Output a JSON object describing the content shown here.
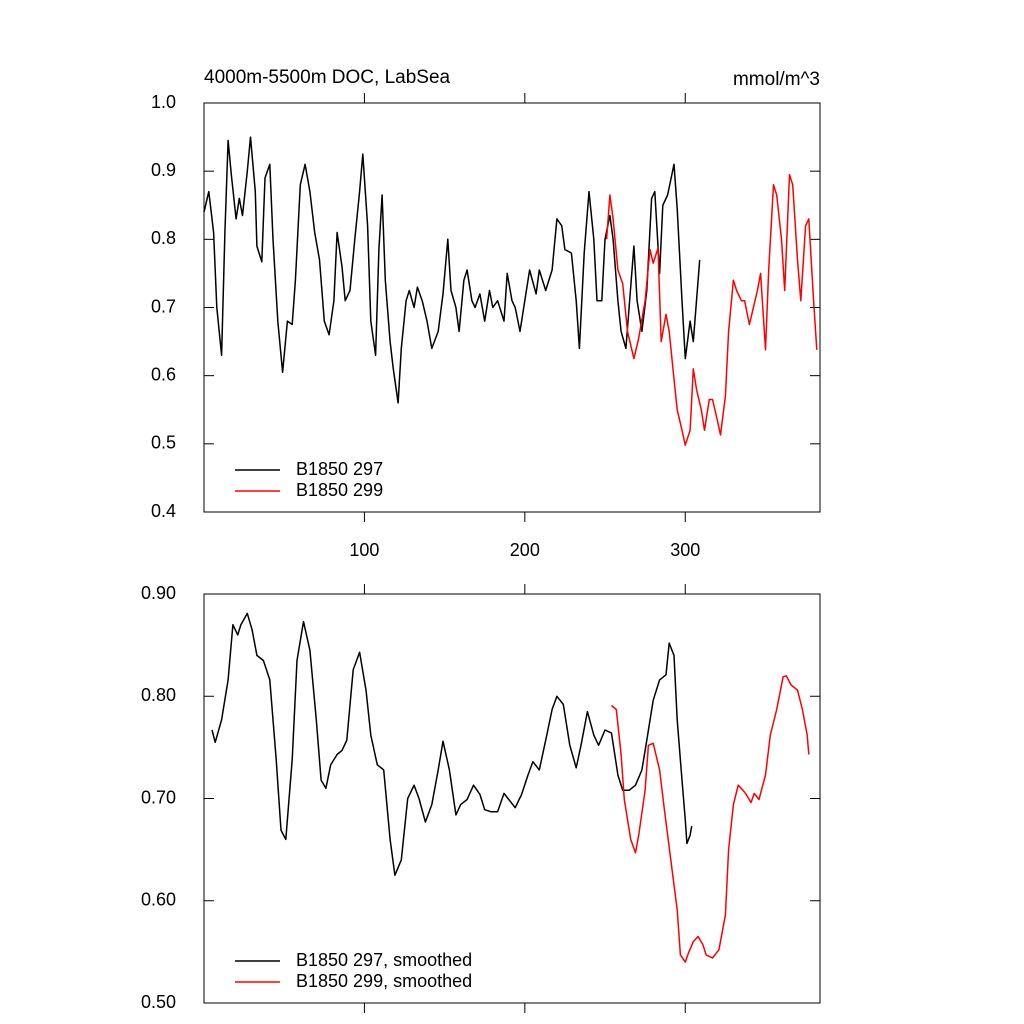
{
  "chart_data": [
    {
      "type": "line",
      "title": "4000m-5500m DOC, LabSea",
      "right_title": "mmol/m^3",
      "xlim": [
        0,
        384
      ],
      "xticks": [
        100,
        200,
        300
      ],
      "show_xtick_labels": true,
      "ylim": [
        0.4,
        1.0
      ],
      "yticks": [
        0.4,
        0.5,
        0.6,
        0.7,
        0.8,
        0.9,
        {
          "value": 1,
          "label": "1.0"
        }
      ],
      "legend": "lower left",
      "series": [
        {
          "name": "B1850 297",
          "color": "#000000",
          "x": [
            0,
            3,
            6,
            8,
            11,
            13,
            15,
            17,
            20,
            22,
            24,
            27,
            29,
            32,
            33,
            36,
            38,
            41,
            43,
            46,
            49,
            52,
            55,
            57,
            60,
            63,
            66,
            69,
            72,
            75,
            78,
            81,
            83,
            86,
            88,
            91,
            94,
            97,
            99,
            102,
            104,
            107,
            109,
            111,
            113,
            116,
            118,
            121,
            123,
            126,
            128,
            131,
            133,
            136,
            139,
            142,
            146,
            149,
            152,
            154,
            157,
            159,
            162,
            164,
            167,
            169,
            172,
            175,
            178,
            180,
            183,
            187,
            189,
            192,
            194,
            197,
            200,
            203,
            207,
            209,
            213,
            217,
            220,
            223,
            225,
            229,
            232,
            234,
            237,
            240,
            243,
            245,
            248,
            250,
            253,
            255,
            258,
            260,
            263,
            265,
            268,
            270,
            273,
            276,
            279,
            281,
            284,
            286,
            289,
            293,
            295,
            298,
            300,
            303,
            305,
            307,
            309
          ],
          "values": [
            0.84,
            0.87,
            0.81,
            0.7,
            0.63,
            0.81,
            0.945,
            0.895,
            0.83,
            0.86,
            0.835,
            0.9,
            0.95,
            0.87,
            0.79,
            0.767,
            0.89,
            0.91,
            0.8,
            0.68,
            0.605,
            0.68,
            0.675,
            0.74,
            0.88,
            0.91,
            0.87,
            0.81,
            0.77,
            0.68,
            0.66,
            0.71,
            0.81,
            0.76,
            0.71,
            0.725,
            0.8,
            0.87,
            0.925,
            0.82,
            0.68,
            0.63,
            0.785,
            0.865,
            0.74,
            0.65,
            0.61,
            0.56,
            0.64,
            0.71,
            0.725,
            0.7,
            0.73,
            0.71,
            0.68,
            0.64,
            0.665,
            0.72,
            0.8,
            0.725,
            0.7,
            0.665,
            0.74,
            0.755,
            0.71,
            0.7,
            0.72,
            0.68,
            0.725,
            0.7,
            0.71,
            0.68,
            0.75,
            0.71,
            0.7,
            0.665,
            0.71,
            0.755,
            0.72,
            0.755,
            0.725,
            0.755,
            0.83,
            0.82,
            0.785,
            0.78,
            0.71,
            0.64,
            0.78,
            0.87,
            0.8,
            0.71,
            0.71,
            0.8,
            0.835,
            0.8,
            0.71,
            0.665,
            0.64,
            0.7,
            0.79,
            0.71,
            0.665,
            0.725,
            0.86,
            0.87,
            0.75,
            0.85,
            0.865,
            0.91,
            0.845,
            0.71,
            0.625,
            0.68,
            0.65,
            0.71,
            0.77
          ]
        },
        {
          "name": "B1850 299",
          "color": "#ff0000",
          "x": [
            251,
            253,
            255,
            258,
            261,
            264,
            268,
            271,
            275,
            278,
            280,
            283,
            285,
            288,
            290,
            293,
            295,
            298,
            300,
            303,
            305,
            307,
            310,
            312,
            315,
            317,
            320,
            322,
            325,
            327,
            330,
            332,
            335,
            337,
            340,
            342,
            345,
            347,
            350,
            352,
            355,
            357,
            360,
            362,
            365,
            367,
            370,
            372,
            375,
            377,
            380,
            382
          ],
          "values": [
            0.8,
            0.865,
            0.83,
            0.755,
            0.735,
            0.665,
            0.625,
            0.655,
            0.71,
            0.785,
            0.765,
            0.787,
            0.65,
            0.69,
            0.665,
            0.595,
            0.55,
            0.52,
            0.498,
            0.52,
            0.61,
            0.58,
            0.55,
            0.52,
            0.565,
            0.565,
            0.535,
            0.513,
            0.57,
            0.665,
            0.74,
            0.725,
            0.71,
            0.71,
            0.675,
            0.695,
            0.725,
            0.75,
            0.638,
            0.755,
            0.88,
            0.865,
            0.8,
            0.725,
            0.895,
            0.88,
            0.77,
            0.71,
            0.82,
            0.83,
            0.71,
            0.638
          ]
        }
      ]
    },
    {
      "type": "line",
      "xlim": [
        0,
        384
      ],
      "xticks": [
        100,
        200,
        300
      ],
      "show_xtick_labels": false,
      "ylim": [
        0.5,
        0.9
      ],
      "yticks": [
        {
          "value": 0.5,
          "label": "0.50"
        },
        {
          "value": 0.6,
          "label": "0.60"
        },
        {
          "value": 0.7,
          "label": "0.70"
        },
        {
          "value": 0.8,
          "label": "0.80"
        },
        {
          "value": 0.9,
          "label": "0.90"
        }
      ],
      "legend": "lower left",
      "series": [
        {
          "name": "B1850 297, smoothed",
          "color": "#000000",
          "x": [
            5,
            7,
            11,
            15,
            18,
            21,
            23,
            27,
            30,
            33,
            37,
            41,
            45,
            48,
            51,
            55,
            58,
            62,
            66,
            70,
            73,
            76,
            79,
            83,
            86,
            89,
            93,
            97,
            101,
            104,
            108,
            112,
            116,
            119,
            123,
            127,
            131,
            134,
            138,
            142,
            146,
            149,
            153,
            157,
            160,
            164,
            168,
            172,
            175,
            179,
            183,
            187,
            190,
            194,
            198,
            202,
            205,
            209,
            213,
            217,
            220,
            224,
            228,
            232,
            235,
            239,
            243,
            246,
            250,
            254,
            258,
            261,
            265,
            269,
            273,
            276,
            280,
            284,
            288,
            290,
            293,
            295,
            298,
            300,
            301,
            303,
            304
          ],
          "values": [
            0.767,
            0.755,
            0.777,
            0.816,
            0.87,
            0.86,
            0.87,
            0.881,
            0.865,
            0.84,
            0.835,
            0.816,
            0.738,
            0.669,
            0.66,
            0.738,
            0.835,
            0.873,
            0.845,
            0.777,
            0.718,
            0.71,
            0.733,
            0.743,
            0.747,
            0.757,
            0.826,
            0.843,
            0.806,
            0.762,
            0.733,
            0.728,
            0.66,
            0.625,
            0.64,
            0.7,
            0.713,
            0.7,
            0.677,
            0.694,
            0.728,
            0.756,
            0.728,
            0.684,
            0.694,
            0.699,
            0.713,
            0.704,
            0.689,
            0.687,
            0.687,
            0.705,
            0.699,
            0.691,
            0.704,
            0.723,
            0.736,
            0.728,
            0.757,
            0.787,
            0.8,
            0.792,
            0.752,
            0.73,
            0.752,
            0.785,
            0.762,
            0.752,
            0.767,
            0.764,
            0.723,
            0.708,
            0.708,
            0.713,
            0.728,
            0.757,
            0.796,
            0.816,
            0.821,
            0.852,
            0.84,
            0.777,
            0.718,
            0.679,
            0.656,
            0.664,
            0.673
          ]
        },
        {
          "name": "B1850 299, smoothed",
          "color": "#ff0000",
          "x": [
            254,
            257,
            260,
            262,
            266,
            269,
            271,
            275,
            277,
            280,
            284,
            287,
            291,
            295,
            297,
            300,
            302,
            305,
            308,
            311,
            313,
            317,
            321,
            325,
            327,
            330,
            333,
            336,
            338,
            341,
            343,
            346,
            350,
            353,
            357,
            361,
            363,
            366,
            370,
            373,
            376,
            377
          ],
          "values": [
            0.791,
            0.787,
            0.743,
            0.699,
            0.66,
            0.647,
            0.664,
            0.708,
            0.752,
            0.754,
            0.728,
            0.689,
            0.64,
            0.591,
            0.547,
            0.54,
            0.549,
            0.56,
            0.565,
            0.557,
            0.547,
            0.544,
            0.552,
            0.586,
            0.65,
            0.694,
            0.713,
            0.708,
            0.704,
            0.696,
            0.705,
            0.699,
            0.723,
            0.762,
            0.787,
            0.819,
            0.82,
            0.811,
            0.806,
            0.787,
            0.762,
            0.743
          ]
        }
      ]
    }
  ]
}
